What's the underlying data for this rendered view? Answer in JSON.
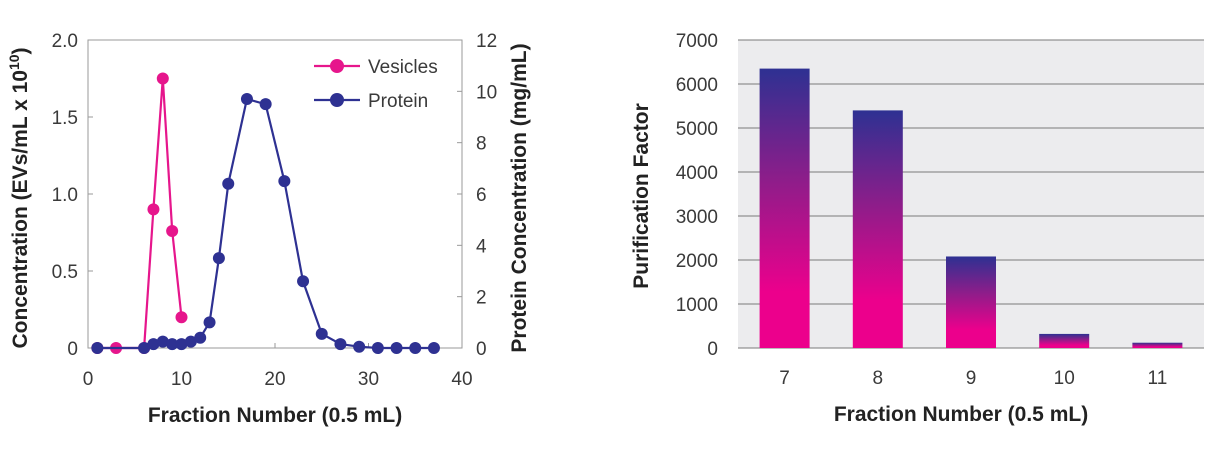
{
  "chart_data": [
    {
      "type": "line",
      "xlabel": "Fraction Number (0.5 mL)",
      "ylabel": "Concentration (EVs/mL x 10",
      "ylabel_sup": "10",
      "ylabel_close": ")",
      "y2label": "Protein Concentration (mg/mL)",
      "xlim": [
        0,
        40
      ],
      "ylim": [
        0,
        2.0
      ],
      "y2lim": [
        0,
        12
      ],
      "x_ticks": [
        0,
        10,
        20,
        30,
        40
      ],
      "x_tick_labels": [
        "0",
        "10",
        "20",
        "30",
        "40"
      ],
      "y_ticks": [
        0,
        0.5,
        1.0,
        1.5,
        2.0
      ],
      "y_tick_labels": [
        "0",
        "0.5",
        "1.0",
        "1.5",
        "2.0"
      ],
      "y2_ticks": [
        0,
        2,
        4,
        6,
        8,
        10,
        12
      ],
      "y2_tick_labels": [
        "0",
        "2",
        "4",
        "6",
        "8",
        "10",
        "12"
      ],
      "grid": false,
      "legend": "top-right",
      "series": [
        {
          "name": "Vesicles",
          "axis": "left",
          "color": "#e6168c",
          "x": [
            1,
            3,
            6,
            7,
            8,
            9,
            10
          ],
          "y": [
            0,
            0,
            0,
            0.9,
            1.75,
            0.76,
            0.2
          ]
        },
        {
          "name": "Protein",
          "axis": "right",
          "color": "#2e3192",
          "x": [
            1,
            6,
            7,
            8,
            9,
            10,
            11,
            12,
            13,
            14,
            15,
            17,
            19,
            21,
            23,
            25,
            27,
            29,
            31,
            33,
            35,
            37
          ],
          "y": [
            0,
            0,
            0.15,
            0.25,
            0.15,
            0.15,
            0.25,
            0.4,
            1.0,
            3.5,
            6.4,
            9.7,
            9.5,
            6.5,
            2.6,
            0.55,
            0.15,
            0.05,
            0,
            0,
            0,
            0
          ]
        }
      ]
    },
    {
      "type": "bar",
      "xlabel": "Fraction Number (0.5 mL)",
      "ylabel": "Purification Factor",
      "categories": [
        "7",
        "8",
        "9",
        "10",
        "11"
      ],
      "values": [
        6350,
        5400,
        2080,
        320,
        120
      ],
      "ylim": [
        0,
        7000
      ],
      "y_ticks": [
        0,
        1000,
        2000,
        3000,
        4000,
        5000,
        6000,
        7000
      ],
      "y_tick_labels": [
        "0",
        "1000",
        "2000",
        "3000",
        "4000",
        "5000",
        "6000",
        "7000"
      ],
      "grid": true,
      "plot_background": "#ececee",
      "bar_color_top": "#2e3192",
      "bar_color_bottom": "#ec008c"
    }
  ]
}
